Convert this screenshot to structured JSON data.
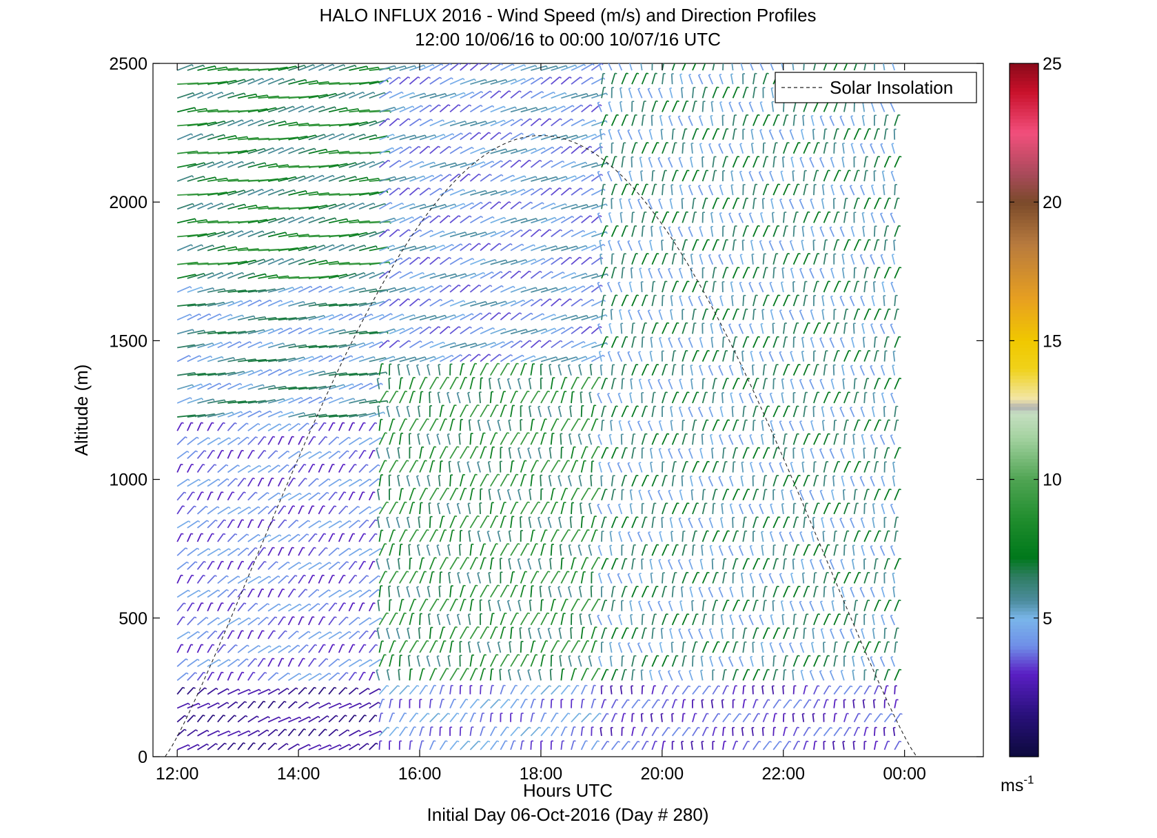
{
  "chart_data": {
    "type": "wind-barb-profile",
    "title": "HALO INFLUX 2016 - Wind Speed (m/s) and Direction Profiles",
    "subtitle": "12:00 10/06/16 to 00:00 10/07/16  UTC",
    "xlabel": "Hours UTC",
    "xlabel2": "Initial Day 06-Oct-2016 (Day # 280)",
    "ylabel": "Altitude (m)",
    "xlim": [
      11.6,
      25.3
    ],
    "ylim": [
      0,
      2500
    ],
    "x_ticks": [
      12,
      14,
      16,
      18,
      20,
      22,
      24
    ],
    "x_tick_labels": [
      "12:00",
      "14:00",
      "16:00",
      "18:00",
      "20:00",
      "22:00",
      "00:00"
    ],
    "y_ticks": [
      0,
      500,
      1000,
      1500,
      2000,
      2500
    ],
    "y_tick_labels": [
      "0",
      "500",
      "1000",
      "1500",
      "2000",
      "2500"
    ],
    "legend": {
      "label": "Solar Insolation",
      "placement": "top-right",
      "line_style": "dashed"
    },
    "solar_insolation_curve": {
      "start_hour": 11.8,
      "peak_hour": 17.5,
      "end_hour": 24.2,
      "peak_altitude_equivalent": 2240
    },
    "colorbar": {
      "min": 0,
      "max": 25,
      "ticks": [
        5,
        10,
        15,
        20,
        25
      ],
      "tick_labels": [
        "5",
        "10",
        "15",
        "20",
        "25"
      ],
      "unit_base": "ms",
      "unit_exp": "-1",
      "colors": [
        {
          "v": 0,
          "c": "#0c0a3c"
        },
        {
          "v": 1.5,
          "c": "#28107a"
        },
        {
          "v": 3,
          "c": "#5a1fc4"
        },
        {
          "v": 4,
          "c": "#6f8fe8"
        },
        {
          "v": 5,
          "c": "#7ab6ea"
        },
        {
          "v": 5.6,
          "c": "#4d8da0"
        },
        {
          "v": 6.5,
          "c": "#2f7d62"
        },
        {
          "v": 7.2,
          "c": "#00781b"
        },
        {
          "v": 8.5,
          "c": "#1e8c2c"
        },
        {
          "v": 10,
          "c": "#4fa453"
        },
        {
          "v": 11.5,
          "c": "#a4d2a0"
        },
        {
          "v": 12.4,
          "c": "#c6dfc2"
        },
        {
          "v": 12.6,
          "c": "#b0b0b0"
        },
        {
          "v": 12.9,
          "c": "#f2e6a8"
        },
        {
          "v": 14,
          "c": "#f0d21a"
        },
        {
          "v": 15,
          "c": "#f0c800"
        },
        {
          "v": 16.5,
          "c": "#e8a020"
        },
        {
          "v": 18.5,
          "c": "#b77a3e"
        },
        {
          "v": 20,
          "c": "#7a4a2a"
        },
        {
          "v": 21,
          "c": "#a84a5a"
        },
        {
          "v": 22.5,
          "c": "#f24f7c"
        },
        {
          "v": 24,
          "c": "#c8102a"
        },
        {
          "v": 25,
          "c": "#8a0a1a"
        }
      ]
    },
    "profiles": {
      "start_hour": 12.0,
      "end_hour": 24.0,
      "step_hours": 0.1667,
      "altitude_step_m": 50,
      "regimes": [
        {
          "hours": [
            12.0,
            15.3
          ],
          "altitudes": [
            1700,
            2500
          ],
          "speed_ms": 7.5,
          "direction_deg": 250
        },
        {
          "hours": [
            12.0,
            15.3
          ],
          "altitudes": [
            1200,
            1700
          ],
          "speed_ms": 5.5,
          "direction_deg": 245
        },
        {
          "hours": [
            12.0,
            15.3
          ],
          "altitudes": [
            0,
            1200
          ],
          "speed_ms": 3.8,
          "direction_deg": 210
        },
        {
          "hours": [
            15.3,
            19.0
          ],
          "altitudes": [
            1400,
            2500
          ],
          "speed_ms": 4.5,
          "direction_deg": 230
        },
        {
          "hours": [
            15.3,
            19.0
          ],
          "altitudes": [
            0,
            1400
          ],
          "speed_ms": 7.5,
          "direction_deg": 185
        },
        {
          "hours": [
            19.0,
            24.0
          ],
          "altitudes": [
            0,
            2500
          ],
          "speed_ms": 5.8,
          "direction_deg": 180
        }
      ]
    }
  }
}
